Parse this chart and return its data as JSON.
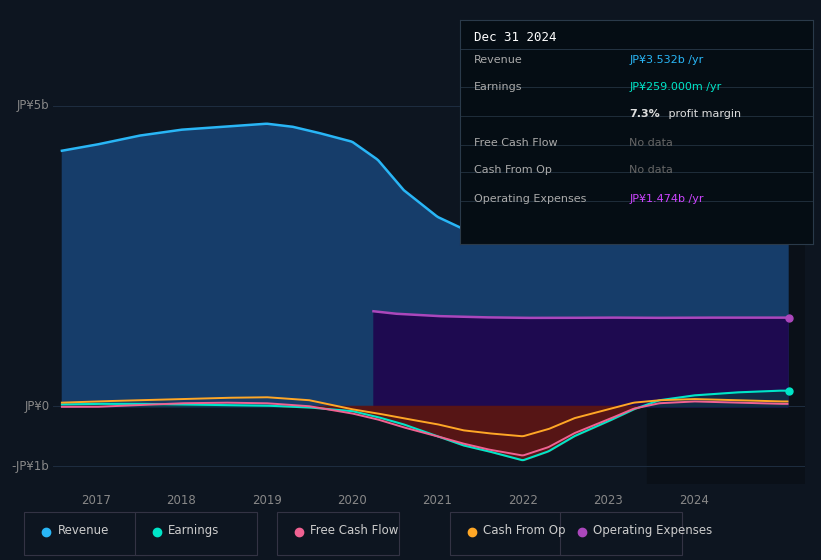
{
  "bg_color": "#0d1520",
  "plot_bg_color": "#0d1520",
  "highlight_bg": "#111a28",
  "grid_color": "#1e2d40",
  "x_labels": [
    "2017",
    "2018",
    "2019",
    "2020",
    "2021",
    "2022",
    "2023",
    "2024"
  ],
  "ylabel_5b": "JP¥5b",
  "ylabel_0": "JP¥0",
  "ylabel_neg1b": "-JP¥1b",
  "revenue_color": "#29b6f6",
  "revenue_fill": "#1a4a7a",
  "earnings_color": "#00e5c8",
  "fcf_color": "#f06292",
  "cfo_color": "#ffa726",
  "op_exp_color": "#ab47bc",
  "op_exp_fill": "#2a1060",
  "neg_fill_color": "#5a1010",
  "tooltip": {
    "title": "Dec 31 2024",
    "rows": [
      {
        "label": "Revenue",
        "value": "JP¥3.532b /yr",
        "value_color": "#29b6f6"
      },
      {
        "label": "Earnings",
        "value": "JP¥259.000m /yr",
        "value_color": "#00e5c8"
      },
      {
        "label": "",
        "value": "7.3% profit margin",
        "value_color": "#dddddd"
      },
      {
        "label": "Free Cash Flow",
        "value": "No data",
        "value_color": "#666666"
      },
      {
        "label": "Cash From Op",
        "value": "No data",
        "value_color": "#666666"
      },
      {
        "label": "Operating Expenses",
        "value": "JP¥1.474b /yr",
        "value_color": "#cc44ff"
      }
    ]
  },
  "legend": [
    {
      "label": "Revenue",
      "color": "#29b6f6"
    },
    {
      "label": "Earnings",
      "color": "#00e5c8"
    },
    {
      "label": "Free Cash Flow",
      "color": "#f06292"
    },
    {
      "label": "Cash From Op",
      "color": "#ffa726"
    },
    {
      "label": "Operating Expenses",
      "color": "#ab47bc"
    }
  ]
}
